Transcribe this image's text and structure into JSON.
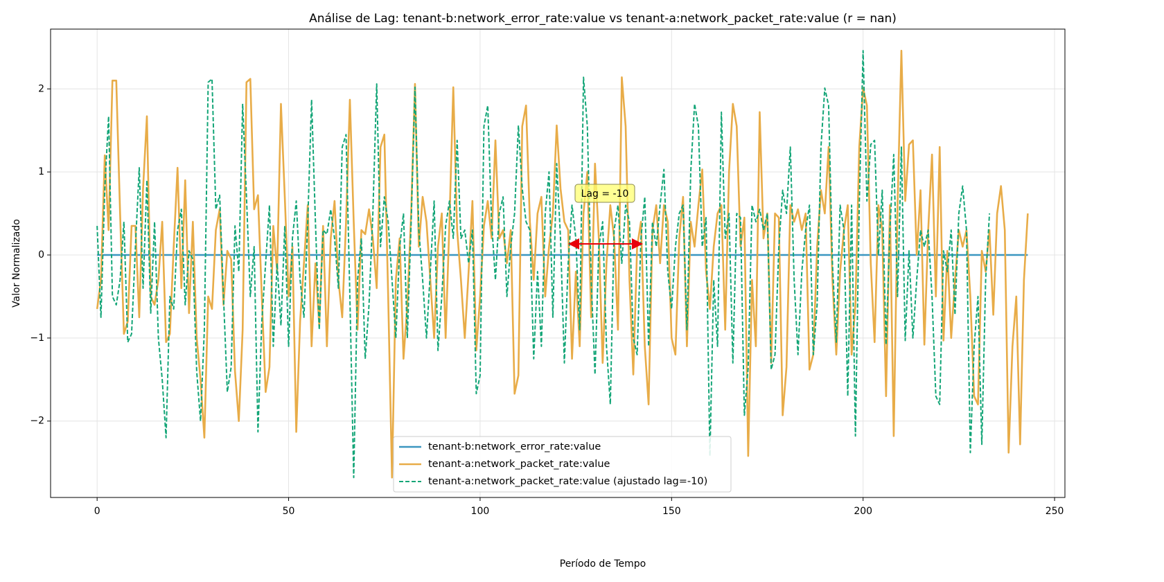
{
  "chart_data": {
    "type": "line",
    "title": "Análise de Lag: tenant-b:network_error_rate:value vs tenant-a:network_packet_rate:value (r = nan)",
    "xlabel": "Período de Tempo",
    "ylabel": "Valor Normalizado",
    "annotation": "Lag = -10",
    "xlim": [
      -12.15,
      252.7
    ],
    "ylim": [
      -2.92,
      2.72
    ],
    "xticks": [
      0,
      50,
      100,
      150,
      200,
      250
    ],
    "yticks": [
      {
        "value": -2,
        "label": "−2"
      },
      {
        "value": -1,
        "label": "−1"
      },
      0,
      1,
      2
    ],
    "grid": true,
    "legend": "lower center",
    "x": [
      0,
      1,
      2,
      3,
      4,
      5,
      6,
      7,
      8,
      9,
      10,
      11,
      12,
      13,
      14,
      15,
      16,
      17,
      18,
      19,
      20,
      21,
      22,
      23,
      24,
      25,
      26,
      27,
      28,
      29,
      30,
      31,
      32,
      33,
      34,
      35,
      36,
      37,
      38,
      39,
      40,
      41,
      42,
      43,
      44,
      45,
      46,
      47,
      48,
      49,
      50,
      51,
      52,
      53,
      54,
      55,
      56,
      57,
      58,
      59,
      60,
      61,
      62,
      63,
      64,
      65,
      66,
      67,
      68,
      69,
      70,
      71,
      72,
      73,
      74,
      75,
      76,
      77,
      78,
      79,
      80,
      81,
      82,
      83,
      84,
      85,
      86,
      87,
      88,
      89,
      90,
      91,
      92,
      93,
      94,
      95,
      96,
      97,
      98,
      99,
      100,
      101,
      102,
      103,
      104,
      105,
      106,
      107,
      108,
      109,
      110,
      111,
      112,
      113,
      114,
      115,
      116,
      117,
      118,
      119,
      120,
      121,
      122,
      123,
      124,
      125,
      126,
      127,
      128,
      129,
      130,
      131,
      132,
      133,
      134,
      135,
      136,
      137,
      138,
      139,
      140,
      141,
      142,
      143,
      144,
      145,
      146,
      147,
      148,
      149,
      150,
      151,
      152,
      153,
      154,
      155,
      156,
      157,
      158,
      159,
      160,
      161,
      162,
      163,
      164,
      165,
      166,
      167,
      168,
      169,
      170,
      171,
      172,
      173,
      174,
      175,
      176,
      177,
      178,
      179,
      180,
      181,
      182,
      183,
      184,
      185,
      186,
      187,
      188,
      189,
      190,
      191,
      192,
      193,
      194,
      195,
      196,
      197,
      198,
      199,
      200,
      201,
      202,
      203,
      204,
      205,
      206,
      207,
      208,
      209,
      210,
      211,
      212,
      213,
      214,
      215,
      216,
      217,
      218,
      219,
      220,
      221,
      222,
      223,
      224,
      225,
      226,
      227,
      228,
      229,
      230,
      231,
      232,
      233,
      234,
      235,
      236,
      237,
      238,
      239,
      240,
      241,
      242,
      243
    ],
    "series": [
      {
        "name": "tenant-b:network_error_rate:value",
        "color": "#3a96c0",
        "dash": false,
        "values": [
          0,
          0,
          0,
          0,
          0,
          0,
          0,
          0,
          0,
          0,
          0,
          0,
          0,
          0,
          0,
          0,
          0,
          0,
          0,
          0,
          0,
          0,
          0,
          0,
          0,
          0,
          0,
          0,
          0,
          0,
          0,
          0,
          0,
          0,
          0,
          0,
          0,
          0,
          0,
          0,
          0,
          0,
          0,
          0,
          0,
          0,
          0,
          0,
          0,
          0,
          0,
          0,
          0,
          0,
          0,
          0,
          0,
          0,
          0,
          0,
          0,
          0,
          0,
          0,
          0,
          0,
          0,
          0,
          0,
          0,
          0,
          0,
          0,
          0,
          0,
          0,
          0,
          0,
          0,
          0,
          0,
          0,
          0,
          0,
          0,
          0,
          0,
          0,
          0,
          0,
          0,
          0,
          0,
          0,
          0,
          0,
          0,
          0,
          0,
          0,
          0,
          0,
          0,
          0,
          0,
          0,
          0,
          0,
          0,
          0,
          0,
          0,
          0,
          0,
          0,
          0,
          0,
          0,
          0,
          0,
          0,
          0,
          0,
          0,
          0,
          0,
          0,
          0,
          0,
          0,
          0,
          0,
          0,
          0,
          0,
          0,
          0,
          0,
          0,
          0,
          0,
          0,
          0,
          0,
          0,
          0,
          0,
          0,
          0,
          0,
          0,
          0,
          0,
          0,
          0,
          0,
          0,
          0,
          0,
          0,
          0,
          0,
          0,
          0,
          0,
          0,
          0,
          0,
          0,
          0,
          0,
          0,
          0,
          0,
          0,
          0,
          0,
          0,
          0,
          0,
          0,
          0,
          0,
          0,
          0,
          0,
          0,
          0,
          0,
          0,
          0,
          0,
          0,
          0,
          0,
          0,
          0,
          0,
          0,
          0,
          0,
          0,
          0,
          0,
          0,
          0,
          0,
          0,
          0,
          0,
          0,
          0,
          0,
          0,
          0,
          0,
          0,
          0,
          0,
          0,
          0,
          0,
          0,
          0,
          0,
          0,
          0,
          0,
          0,
          0,
          0,
          0,
          0,
          0,
          0,
          0,
          0,
          0,
          0,
          0,
          0,
          0,
          0,
          0
        ]
      },
      {
        "name": "tenant-a:network_packet_rate:value",
        "color": "#e8ac48",
        "dash": false,
        "values": [
          -0.65,
          -0.3,
          1.2,
          0.3,
          2.1,
          2.1,
          0.5,
          -0.95,
          -0.8,
          0.35,
          0.35,
          -0.75,
          0.8,
          1.67,
          -0.5,
          -0.6,
          -0.3,
          0.4,
          -1.05,
          -0.95,
          0.1,
          1.05,
          -0.4,
          0.9,
          -0.7,
          0.4,
          -1.0,
          -1.5,
          -2.2,
          -0.5,
          -0.65,
          0.3,
          0.55,
          -0.6,
          0.05,
          -0.05,
          -1.4,
          -2.0,
          -0.9,
          2.08,
          2.12,
          0.55,
          0.72,
          -0.5,
          -1.65,
          -1.35,
          0.35,
          -0.2,
          1.82,
          0.7,
          -0.5,
          0.1,
          -2.13,
          -0.8,
          -0.1,
          0.6,
          -1.1,
          -0.1,
          -0.85,
          0.35,
          -1.1,
          0.2,
          0.65,
          -0.3,
          -0.75,
          0.4,
          1.87,
          0.4,
          -0.9,
          0.3,
          0.25,
          0.55,
          0.2,
          -0.4,
          1.3,
          1.45,
          -0.5,
          -2.68,
          -0.3,
          0.2,
          -1.25,
          -0.6,
          0.5,
          2.06,
          0.1,
          0.7,
          0.4,
          -0.3,
          -1.0,
          0.1,
          0.5,
          -1.0,
          0.4,
          2.02,
          0.3,
          -0.3,
          -1.0,
          -0.2,
          0.65,
          -1.15,
          -0.5,
          0.35,
          0.65,
          0.2,
          1.38,
          0.2,
          0.3,
          -0.1,
          0.3,
          -1.67,
          -1.45,
          1.55,
          1.8,
          0.4,
          -0.3,
          0.5,
          0.7,
          -0.5,
          0.1,
          0.5,
          1.56,
          0.8,
          0.4,
          0.3,
          -1.25,
          -0.2,
          -1.1,
          0.5,
          1.0,
          -0.75,
          1.1,
          0.2,
          -1.3,
          -0.1,
          0.6,
          0.2,
          -0.9,
          2.14,
          1.55,
          -0.3,
          -1.44,
          0.1,
          0.4,
          -1.1,
          -1.8,
          0.3,
          0.6,
          -0.1,
          0.6,
          0.4,
          -1.0,
          -1.2,
          0.2,
          0.7,
          -1.1,
          0.4,
          0.1,
          0.6,
          1.03,
          -0.2,
          -0.65,
          0.1,
          0.5,
          0.6,
          -0.9,
          1.0,
          1.82,
          1.55,
          0.1,
          0.45,
          -2.42,
          -0.3,
          -1.1,
          1.72,
          0.2,
          0.5,
          -1.3,
          0.5,
          0.45,
          -1.93,
          -1.35,
          0.6,
          0.4,
          0.55,
          0.3,
          0.5,
          -1.38,
          -1.2,
          0.1,
          0.78,
          0.5,
          1.3,
          -0.3,
          -1.2,
          -0.2,
          0.3,
          0.6,
          -1.2,
          -0.6,
          1.3,
          2.01,
          1.8,
          -0.1,
          -1.05,
          0.6,
          0.3,
          -1.7,
          0.6,
          -2.18,
          0.6,
          2.46,
          0.65,
          1.33,
          1.38,
          0.0,
          0.78,
          -1.08,
          0.3,
          1.21,
          -0.5,
          1.3,
          -1.03,
          0.05,
          -1.0,
          -0.3,
          0.3,
          0.1,
          0.3,
          -0.5,
          -1.7,
          -1.8,
          0.05,
          -0.2,
          0.3,
          -0.72,
          0.5,
          0.83,
          0.3,
          -2.38,
          -1.1,
          -0.5,
          -2.28,
          -0.3,
          0.5
        ]
      },
      {
        "name": "tenant-a:network_packet_rate:value (ajustado lag=-10)",
        "color": "#13a577",
        "dash": true,
        "values": [
          0.35,
          -0.75,
          0.8,
          1.67,
          -0.5,
          -0.6,
          -0.3,
          0.4,
          -1.05,
          -0.95,
          0.1,
          1.05,
          -0.4,
          0.9,
          -0.7,
          0.4,
          -1.0,
          -1.5,
          -2.2,
          -0.5,
          -0.65,
          0.3,
          0.55,
          -0.6,
          0.05,
          -0.05,
          -1.4,
          -2.0,
          -0.9,
          2.08,
          2.12,
          0.55,
          0.72,
          -0.5,
          -1.65,
          -1.35,
          0.35,
          -0.2,
          1.82,
          0.7,
          -0.5,
          0.1,
          -2.13,
          -0.8,
          -0.1,
          0.6,
          -1.1,
          -0.1,
          -0.85,
          0.35,
          -1.1,
          0.2,
          0.65,
          -0.3,
          -0.75,
          0.4,
          1.87,
          0.4,
          -0.9,
          0.3,
          0.25,
          0.55,
          0.2,
          -0.4,
          1.3,
          1.45,
          -0.5,
          -2.68,
          -0.3,
          0.2,
          -1.25,
          -0.6,
          0.5,
          2.06,
          0.1,
          0.7,
          0.4,
          -0.3,
          -1.0,
          0.1,
          0.5,
          -1.0,
          0.4,
          2.02,
          0.3,
          -0.3,
          -1.0,
          -0.2,
          0.65,
          -1.15,
          -0.5,
          0.35,
          0.65,
          0.2,
          1.38,
          0.2,
          0.3,
          -0.1,
          0.3,
          -1.67,
          -1.45,
          1.55,
          1.8,
          0.4,
          -0.3,
          0.5,
          0.7,
          -0.5,
          0.1,
          0.5,
          1.56,
          0.8,
          0.4,
          0.3,
          -1.25,
          -0.2,
          -1.1,
          0.5,
          1.0,
          -0.75,
          1.1,
          0.2,
          -1.3,
          -0.1,
          0.6,
          0.2,
          -0.9,
          2.14,
          1.55,
          -0.3,
          -1.44,
          0.1,
          0.4,
          -1.1,
          -1.8,
          0.3,
          0.6,
          -0.1,
          0.6,
          0.4,
          -1.0,
          -1.2,
          0.2,
          0.7,
          -1.1,
          0.4,
          0.1,
          0.6,
          1.03,
          -0.2,
          -0.65,
          0.1,
          0.5,
          0.6,
          -0.9,
          1.0,
          1.82,
          1.55,
          0.1,
          0.45,
          -2.42,
          -0.3,
          -1.1,
          1.72,
          0.2,
          0.5,
          -1.3,
          0.5,
          0.45,
          -1.93,
          -1.35,
          0.6,
          0.4,
          0.55,
          0.3,
          0.5,
          -1.38,
          -1.2,
          0.1,
          0.78,
          0.5,
          1.3,
          -0.3,
          -1.2,
          -0.2,
          0.3,
          0.6,
          -1.2,
          -0.6,
          1.3,
          2.01,
          1.8,
          -0.1,
          -1.05,
          0.6,
          0.3,
          -1.7,
          0.6,
          -2.18,
          0.6,
          2.46,
          0.65,
          1.33,
          1.38,
          0.0,
          0.78,
          -1.08,
          0.3,
          1.21,
          -0.5,
          1.3,
          -1.03,
          0.05,
          -1.0,
          -0.3,
          0.3,
          0.1,
          0.3,
          -0.5,
          -1.7,
          -1.8,
          0.05,
          -0.2,
          0.3,
          -0.72,
          0.5,
          0.83,
          0.3,
          -2.38,
          -1.1,
          -0.5,
          -2.28,
          -0.3,
          0.5,
          null,
          null,
          null,
          null,
          null,
          null,
          null,
          null,
          null,
          null
        ]
      }
    ]
  }
}
